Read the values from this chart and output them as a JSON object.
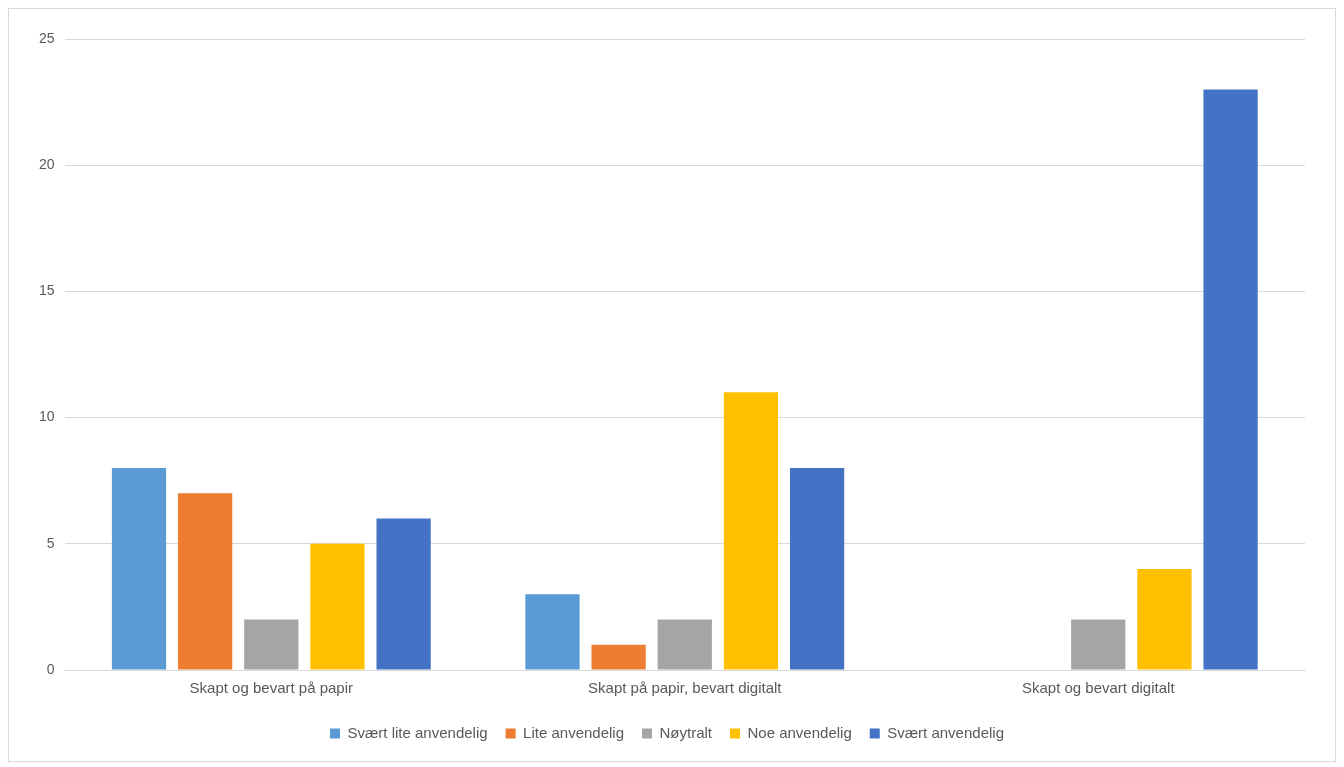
{
  "chart_data": {
    "type": "bar",
    "categories": [
      "Skapt og bevart på papir",
      "Skapt på papir, bevart digitalt",
      "Skapt og bevart digitalt"
    ],
    "series": [
      {
        "name": "Svært lite anvendelig",
        "color": "#5b9bd5",
        "values": [
          8,
          3,
          0
        ]
      },
      {
        "name": "Lite anvendelig",
        "color": "#ed7d31",
        "values": [
          7,
          1,
          0
        ]
      },
      {
        "name": "Nøytralt",
        "color": "#a5a5a5",
        "values": [
          2,
          2,
          2
        ]
      },
      {
        "name": "Noe anvendelig",
        "color": "#ffc000",
        "values": [
          5,
          11,
          4
        ]
      },
      {
        "name": "Svært anvendelig",
        "color": "#4472c4",
        "values": [
          6,
          8,
          23
        ]
      }
    ],
    "ylim": [
      0,
      25
    ],
    "yticks": [
      0,
      5,
      10,
      15,
      20,
      25
    ],
    "grid": "y",
    "legend": "bottom"
  }
}
